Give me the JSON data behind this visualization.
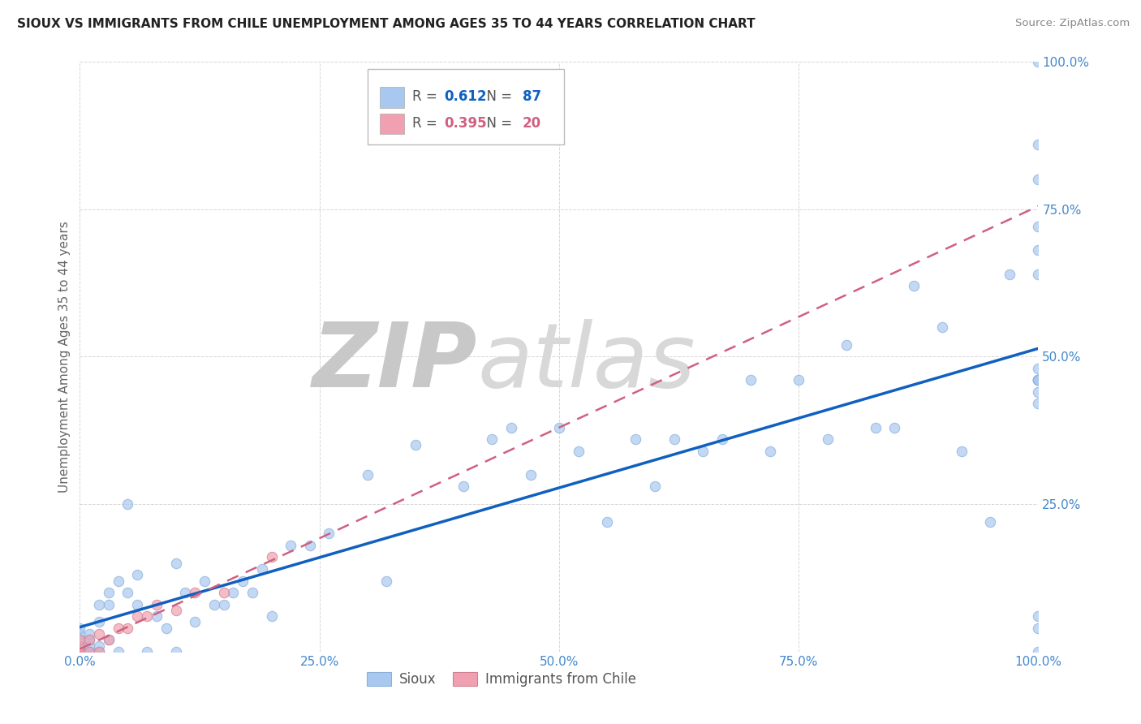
{
  "title": "SIOUX VS IMMIGRANTS FROM CHILE UNEMPLOYMENT AMONG AGES 35 TO 44 YEARS CORRELATION CHART",
  "source": "Source: ZipAtlas.com",
  "ylabel": "Unemployment Among Ages 35 to 44 years",
  "xlim": [
    0.0,
    1.0
  ],
  "ylim": [
    0.0,
    1.0
  ],
  "xticks": [
    0.0,
    0.25,
    0.5,
    0.75,
    1.0
  ],
  "xticklabels": [
    "0.0%",
    "25.0%",
    "50.0%",
    "75.0%",
    "100.0%"
  ],
  "yticks": [
    0.25,
    0.5,
    0.75,
    1.0
  ],
  "yticklabels": [
    "25.0%",
    "50.0%",
    "75.0%",
    "100.0%"
  ],
  "sioux_R": 0.612,
  "sioux_N": 87,
  "chile_R": 0.395,
  "chile_N": 20,
  "sioux_color": "#a8c8f0",
  "chile_color": "#f0a0b0",
  "sioux_line_color": "#1060c0",
  "chile_line_color": "#d06080",
  "background_color": "#ffffff",
  "grid_color": "#cccccc",
  "tick_color": "#4488cc",
  "sioux_x": [
    0.0,
    0.0,
    0.0,
    0.0,
    0.0,
    0.0,
    0.0,
    0.0,
    0.01,
    0.01,
    0.01,
    0.01,
    0.01,
    0.02,
    0.02,
    0.02,
    0.02,
    0.03,
    0.03,
    0.03,
    0.04,
    0.04,
    0.05,
    0.05,
    0.06,
    0.06,
    0.07,
    0.08,
    0.09,
    0.1,
    0.1,
    0.11,
    0.12,
    0.13,
    0.14,
    0.15,
    0.16,
    0.17,
    0.18,
    0.19,
    0.2,
    0.22,
    0.24,
    0.26,
    0.3,
    0.32,
    0.35,
    0.4,
    0.43,
    0.45,
    0.47,
    0.5,
    0.52,
    0.55,
    0.58,
    0.6,
    0.62,
    0.65,
    0.67,
    0.7,
    0.72,
    0.75,
    0.78,
    0.8,
    0.83,
    0.85,
    0.87,
    0.9,
    0.92,
    0.95,
    0.97,
    1.0,
    1.0,
    1.0,
    1.0,
    1.0,
    1.0,
    1.0,
    1.0,
    1.0,
    1.0,
    1.0,
    1.0,
    1.0,
    1.0,
    1.0,
    1.0
  ],
  "sioux_y": [
    0.0,
    0.0,
    0.0,
    0.01,
    0.01,
    0.02,
    0.03,
    0.04,
    0.0,
    0.0,
    0.01,
    0.02,
    0.03,
    0.0,
    0.01,
    0.05,
    0.08,
    0.02,
    0.08,
    0.1,
    0.0,
    0.12,
    0.1,
    0.25,
    0.08,
    0.13,
    0.0,
    0.06,
    0.04,
    0.0,
    0.15,
    0.1,
    0.05,
    0.12,
    0.08,
    0.08,
    0.1,
    0.12,
    0.1,
    0.14,
    0.06,
    0.18,
    0.18,
    0.2,
    0.3,
    0.12,
    0.35,
    0.28,
    0.36,
    0.38,
    0.3,
    0.38,
    0.34,
    0.22,
    0.36,
    0.28,
    0.36,
    0.34,
    0.36,
    0.46,
    0.34,
    0.46,
    0.36,
    0.52,
    0.38,
    0.38,
    0.62,
    0.55,
    0.34,
    0.22,
    0.64,
    0.0,
    0.04,
    0.06,
    0.42,
    0.44,
    0.46,
    0.48,
    0.46,
    0.46,
    0.46,
    0.64,
    0.68,
    0.72,
    0.8,
    0.86,
    1.0
  ],
  "chile_x": [
    0.0,
    0.0,
    0.0,
    0.0,
    0.0,
    0.0,
    0.01,
    0.01,
    0.02,
    0.02,
    0.03,
    0.04,
    0.05,
    0.06,
    0.07,
    0.08,
    0.1,
    0.12,
    0.15,
    0.2
  ],
  "chile_y": [
    0.0,
    0.0,
    0.0,
    0.0,
    0.01,
    0.02,
    0.0,
    0.02,
    0.0,
    0.03,
    0.02,
    0.04,
    0.04,
    0.06,
    0.06,
    0.08,
    0.07,
    0.1,
    0.1,
    0.16
  ]
}
